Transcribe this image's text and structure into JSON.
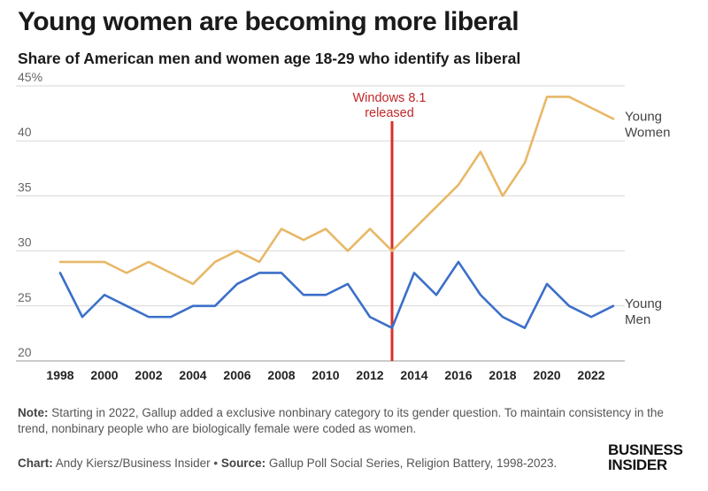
{
  "header": {
    "title": "Young women are becoming more liberal",
    "subtitle": "Share of American men and women age 18-29 who identify as liberal"
  },
  "chart_data": {
    "type": "line",
    "x": [
      1998,
      1999,
      2000,
      2001,
      2002,
      2003,
      2004,
      2005,
      2006,
      2007,
      2008,
      2009,
      2010,
      2011,
      2012,
      2013,
      2014,
      2015,
      2016,
      2017,
      2018,
      2019,
      2020,
      2021,
      2022,
      2023
    ],
    "x_ticks": [
      "1998",
      "2000",
      "2002",
      "2004",
      "2006",
      "2008",
      "2010",
      "2012",
      "2014",
      "2016",
      "2018",
      "2020",
      "2022"
    ],
    "y_ticks": [
      "45%",
      "40",
      "35",
      "30",
      "25",
      "20"
    ],
    "ylim": [
      20,
      45
    ],
    "xlim": [
      1998,
      2023
    ],
    "grid": "horizontal",
    "series": [
      {
        "name": "Young Women",
        "name_lines": [
          "Young",
          "Women"
        ],
        "color": "#e8b868",
        "values": [
          29,
          29,
          29,
          28,
          29,
          28,
          27,
          29,
          30,
          29,
          32,
          31,
          32,
          30,
          32,
          30,
          32,
          34,
          36,
          39,
          35,
          38,
          44,
          44,
          43,
          42
        ]
      },
      {
        "name": "Young Men",
        "name_lines": [
          "Young",
          "Men"
        ],
        "color": "#3b6fc9",
        "values": [
          28,
          24,
          26,
          25,
          24,
          24,
          25,
          25,
          27,
          28,
          28,
          26,
          26,
          27,
          24,
          23,
          28,
          26,
          29,
          26,
          24,
          23,
          27,
          25,
          24,
          25
        ]
      }
    ],
    "annotation": {
      "x": 2013,
      "lines": [
        "Windows 8.1",
        "released"
      ],
      "color": "#d9302b"
    }
  },
  "footer": {
    "note_label": "Note:",
    "note_text": " Starting in 2022, Gallup added a exclusive nonbinary category to its gender question. To maintain consistency in the trend, nonbinary people who are biologically female were coded as women.",
    "chart_label": "Chart:",
    "chart_text": " Andy Kiersz/Business Insider • ",
    "source_label": "Source:",
    "source_text": " Gallup Poll Social Series, Religion Battery, 1998-2023.",
    "logo_line1": "BUSINESS",
    "logo_line2": "INSIDER"
  }
}
